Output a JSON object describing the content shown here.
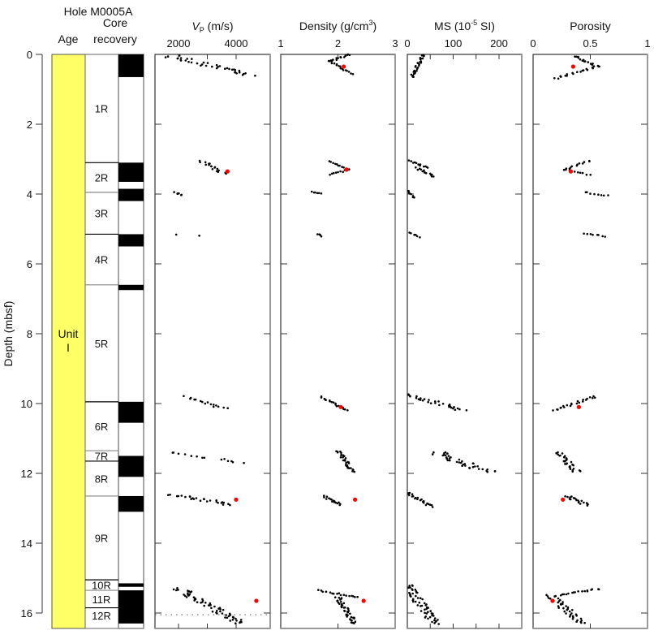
{
  "chart_data": {
    "type": "scatter",
    "title": "Hole M0005A",
    "ylabel": "Depth (mbsf)",
    "ylim": [
      0,
      16.3
    ],
    "yticks": [
      0,
      2,
      4,
      6,
      8,
      10,
      12,
      14,
      16
    ],
    "columns": {
      "age": {
        "header": "Age",
        "unit_label_line1": "Unit",
        "unit_label_line2": "I",
        "color": "#ffff66",
        "top": 0,
        "bottom": 16.3
      },
      "core": {
        "header_line1": "Core",
        "header_line2": "recovery",
        "cores": [
          {
            "label": "1R",
            "top": 0,
            "bottom": 3.1
          },
          {
            "label": "2R",
            "top": 3.1,
            "bottom": 3.95
          },
          {
            "label": "3R",
            "top": 3.95,
            "bottom": 5.15
          },
          {
            "label": "4R",
            "top": 5.15,
            "bottom": 6.6
          },
          {
            "label": "5R",
            "top": 6.6,
            "bottom": 9.95
          },
          {
            "label": "6R",
            "top": 9.95,
            "bottom": 11.35
          },
          {
            "label": "7R",
            "top": 11.35,
            "bottom": 11.65
          },
          {
            "label": "8R",
            "top": 11.65,
            "bottom": 12.65
          },
          {
            "label": "9R",
            "top": 12.65,
            "bottom": 15.05
          },
          {
            "label": "10R",
            "top": 15.05,
            "bottom": 15.35
          },
          {
            "label": "11R",
            "top": 15.35,
            "bottom": 15.85
          },
          {
            "label": "12R",
            "top": 15.85,
            "bottom": 16.3
          }
        ],
        "recovered": [
          [
            0,
            0.65
          ],
          [
            3.1,
            3.65
          ],
          [
            3.85,
            4.2
          ],
          [
            5.15,
            5.5
          ],
          [
            6.6,
            6.75
          ],
          [
            9.95,
            10.55
          ],
          [
            11.5,
            12.1
          ],
          [
            12.65,
            13.1
          ],
          [
            15.15,
            15.25
          ],
          [
            15.35,
            16.3
          ]
        ]
      }
    },
    "panels": [
      {
        "key": "vp",
        "title_main": "V",
        "title_sub": "P",
        "title_rest": " (m/s)",
        "xlim": [
          1200,
          5200
        ],
        "xticks": [
          2000,
          4000
        ],
        "xticklabels": [
          "2000",
          "4000"
        ],
        "minor_ticks": [
          3000
        ],
        "segments": [
          {
            "d0": 0.05,
            "d1": 0.6,
            "x0": 1800,
            "x1": 4600,
            "n": 38,
            "spread": 700
          },
          {
            "d0": 3.05,
            "d1": 3.4,
            "x0": 2800,
            "x1": 3600,
            "n": 18,
            "spread": 300
          },
          {
            "d0": 3.95,
            "d1": 4.05,
            "x0": 1900,
            "x1": 2100,
            "n": 6,
            "spread": 150
          },
          {
            "d0": 5.15,
            "d1": 5.2,
            "x0": 1900,
            "x1": 2700,
            "n": 2,
            "spread": 100
          },
          {
            "d0": 9.8,
            "d1": 10.15,
            "x0": 2300,
            "x1": 3600,
            "n": 16,
            "spread": 250
          },
          {
            "d0": 11.4,
            "d1": 11.7,
            "x0": 1800,
            "x1": 4200,
            "n": 14,
            "spread": 500
          },
          {
            "d0": 12.6,
            "d1": 12.9,
            "x0": 1800,
            "x1": 3800,
            "n": 26,
            "spread": 500
          },
          {
            "d0": 15.3,
            "d1": 16.3,
            "x0": 2000,
            "x1": 4200,
            "n": 60,
            "spread": 500
          }
        ],
        "red_points": [
          [
            3.35,
            3700
          ],
          [
            12.75,
            4000
          ],
          [
            15.65,
            4700
          ]
        ],
        "dotted_line_depth": 16.05
      },
      {
        "key": "density",
        "title_main": "Density (g/cm",
        "title_sup": "3",
        "title_rest": ")",
        "xlim": [
          1,
          3
        ],
        "xticks": [
          1,
          2,
          3
        ],
        "xticklabels": [
          "1",
          "2",
          "3"
        ],
        "segments": [
          {
            "d0": 0.0,
            "d1": 0.2,
            "x0": 2.2,
            "x1": 1.85,
            "n": 14,
            "spread": 0.05
          },
          {
            "d0": 0.2,
            "d1": 0.55,
            "x0": 1.85,
            "x1": 2.25,
            "n": 16,
            "spread": 0.05
          },
          {
            "d0": 3.05,
            "d1": 3.3,
            "x0": 1.85,
            "x1": 2.2,
            "n": 12,
            "spread": 0.03
          },
          {
            "d0": 3.3,
            "d1": 3.45,
            "x0": 2.2,
            "x1": 1.85,
            "n": 10,
            "spread": 0.03
          },
          {
            "d0": 3.95,
            "d1": 4.0,
            "x0": 1.55,
            "x1": 1.7,
            "n": 6,
            "spread": 0.02
          },
          {
            "d0": 5.15,
            "d1": 5.2,
            "x0": 1.65,
            "x1": 1.7,
            "n": 4,
            "spread": 0.02
          },
          {
            "d0": 9.8,
            "d1": 10.2,
            "x0": 1.7,
            "x1": 2.15,
            "n": 18,
            "spread": 0.05
          },
          {
            "d0": 11.35,
            "d1": 11.95,
            "x0": 2.0,
            "x1": 2.25,
            "n": 30,
            "spread": 0.1
          },
          {
            "d0": 12.65,
            "d1": 12.9,
            "x0": 1.75,
            "x1": 2.05,
            "n": 16,
            "spread": 0.08
          },
          {
            "d0": 15.35,
            "d1": 15.55,
            "x0": 1.65,
            "x1": 2.35,
            "n": 18,
            "spread": 0.04
          },
          {
            "d0": 15.55,
            "d1": 16.3,
            "x0": 2.0,
            "x1": 2.3,
            "n": 40,
            "spread": 0.12
          }
        ],
        "red_points": [
          [
            0.35,
            2.1
          ],
          [
            3.3,
            2.15
          ],
          [
            10.1,
            2.05
          ],
          [
            12.75,
            2.3
          ],
          [
            15.65,
            2.45
          ]
        ]
      },
      {
        "key": "ms",
        "title_main": "MS (10",
        "title_sup": "-5",
        "title_rest": " SI)",
        "xlim": [
          0,
          250
        ],
        "xticks": [
          0,
          100,
          200
        ],
        "xticklabels": [
          "0",
          "100",
          "200"
        ],
        "minor_ticks": [
          50,
          150
        ],
        "segments": [
          {
            "d0": 0.0,
            "d1": 0.65,
            "x0": 35,
            "x1": 10,
            "n": 30,
            "spread": 8
          },
          {
            "d0": 3.05,
            "d1": 3.25,
            "x0": 5,
            "x1": 45,
            "n": 12,
            "spread": 6
          },
          {
            "d0": 3.25,
            "d1": 3.5,
            "x0": 20,
            "x1": 60,
            "n": 14,
            "spread": 8
          },
          {
            "d0": 3.9,
            "d1": 4.1,
            "x0": 0,
            "x1": 15,
            "n": 8,
            "spread": 5
          },
          {
            "d0": 5.1,
            "d1": 5.25,
            "x0": 5,
            "x1": 25,
            "n": 6,
            "spread": 5
          },
          {
            "d0": 9.75,
            "d1": 10.2,
            "x0": 0,
            "x1": 120,
            "n": 30,
            "spread": 30
          },
          {
            "d0": 11.4,
            "d1": 11.95,
            "x0": 60,
            "x1": 180,
            "n": 40,
            "spread": 45
          },
          {
            "d0": 12.55,
            "d1": 12.95,
            "x0": 0,
            "x1": 50,
            "n": 22,
            "spread": 12
          },
          {
            "d0": 15.2,
            "d1": 16.3,
            "x0": 0,
            "x1": 60,
            "n": 60,
            "spread": 25
          }
        ],
        "red_points": []
      },
      {
        "key": "porosity",
        "title_main": "Porosity",
        "title_sup": "",
        "title_rest": "",
        "xlim": [
          0,
          1
        ],
        "xticks": [
          0,
          0.5,
          1
        ],
        "xticklabels": [
          "0",
          "0.5",
          "1"
        ],
        "segments": [
          {
            "d0": 0.05,
            "d1": 0.35,
            "x0": 0.35,
            "x1": 0.58,
            "n": 16,
            "spread": 0.04
          },
          {
            "d0": 0.35,
            "d1": 0.7,
            "x0": 0.55,
            "x1": 0.18,
            "n": 18,
            "spread": 0.04
          },
          {
            "d0": 3.05,
            "d1": 3.3,
            "x0": 0.5,
            "x1": 0.27,
            "n": 12,
            "spread": 0.03
          },
          {
            "d0": 3.3,
            "d1": 3.45,
            "x0": 0.3,
            "x1": 0.5,
            "n": 8,
            "spread": 0.03
          },
          {
            "d0": 3.95,
            "d1": 4.05,
            "x0": 0.45,
            "x1": 0.65,
            "n": 8,
            "spread": 0.03
          },
          {
            "d0": 5.15,
            "d1": 5.2,
            "x0": 0.45,
            "x1": 0.62,
            "n": 8,
            "spread": 0.03
          },
          {
            "d0": 9.8,
            "d1": 10.2,
            "x0": 0.55,
            "x1": 0.18,
            "n": 22,
            "spread": 0.05
          },
          {
            "d0": 11.4,
            "d1": 11.95,
            "x0": 0.22,
            "x1": 0.38,
            "n": 30,
            "spread": 0.08
          },
          {
            "d0": 12.65,
            "d1": 12.9,
            "x0": 0.3,
            "x1": 0.48,
            "n": 20,
            "spread": 0.08
          },
          {
            "d0": 15.3,
            "d1": 15.5,
            "x0": 0.58,
            "x1": 0.2,
            "n": 18,
            "spread": 0.04
          },
          {
            "d0": 15.5,
            "d1": 16.3,
            "x0": 0.15,
            "x1": 0.42,
            "n": 40,
            "spread": 0.1
          }
        ],
        "red_points": [
          [
            0.35,
            0.35
          ],
          [
            3.35,
            0.33
          ],
          [
            10.1,
            0.4
          ],
          [
            12.75,
            0.26
          ],
          [
            15.65,
            0.17
          ]
        ]
      }
    ]
  }
}
